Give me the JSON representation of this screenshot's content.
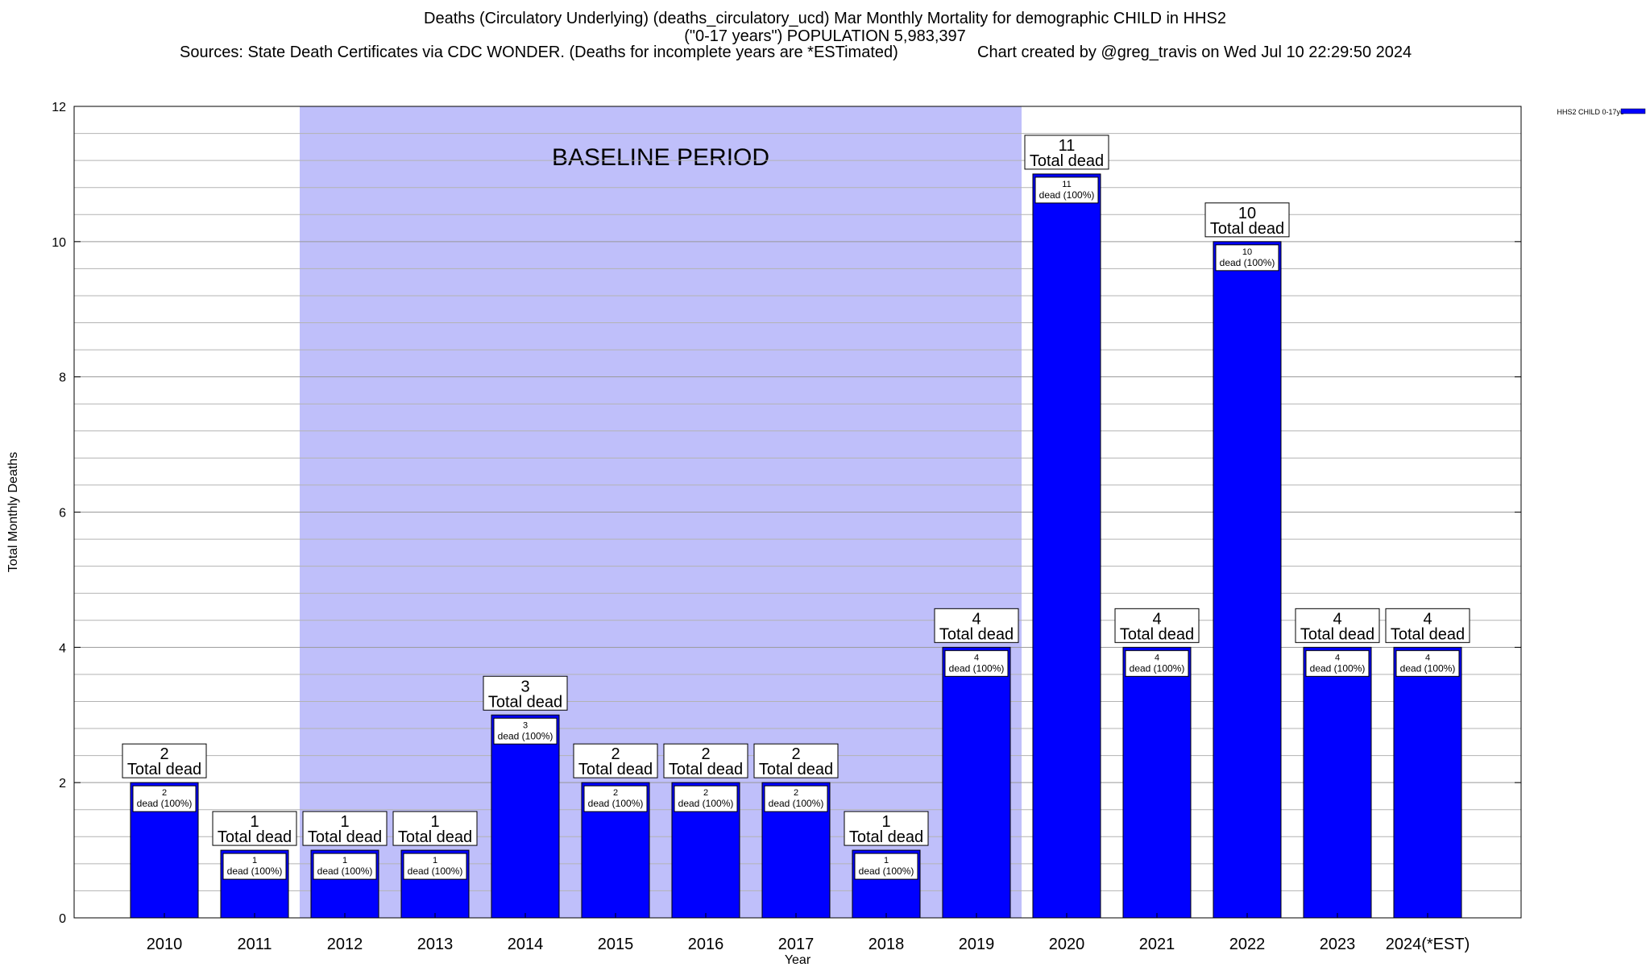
{
  "chart_data": {
    "type": "bar",
    "title": "Deaths (Circulatory Underlying) (deaths_circulatory_ucd) Mar Monthly Mortality for demographic CHILD in HHS2",
    "subtitle": "(\"0-17 years\") POPULATION 5,983,397",
    "sources": "Sources: State Death Certificates via CDC WONDER. (Deaths for incomplete years are *ESTimated)",
    "created": "Chart created by @greg_travis on Wed Jul 10 22:29:50 2024",
    "xlabel": "Year",
    "ylabel": "Total Monthly Deaths",
    "ylim": [
      0,
      12
    ],
    "yticks": [
      0,
      2,
      4,
      6,
      8,
      10,
      12
    ],
    "grid": true,
    "legend_position": "top-right",
    "baseline_label": "BASELINE PERIOD",
    "baseline_range": [
      "2012",
      "2019"
    ],
    "categories": [
      "2010",
      "2011",
      "2012",
      "2013",
      "2014",
      "2015",
      "2016",
      "2017",
      "2018",
      "2019",
      "2020",
      "2021",
      "2022",
      "2023",
      "2024(*EST)"
    ],
    "series": [
      {
        "name": "HHS2 CHILD 0-17yo",
        "values": [
          2,
          1,
          1,
          1,
          3,
          2,
          2,
          2,
          1,
          4,
          11,
          4,
          10,
          4,
          4
        ],
        "color": "#0000ff"
      }
    ],
    "total_label": "Total dead",
    "inner_label": "dead (100%)",
    "colors": {
      "bar": "#0000ff",
      "baseline": "#bfbffa",
      "grid": "#b3b3b3"
    }
  }
}
